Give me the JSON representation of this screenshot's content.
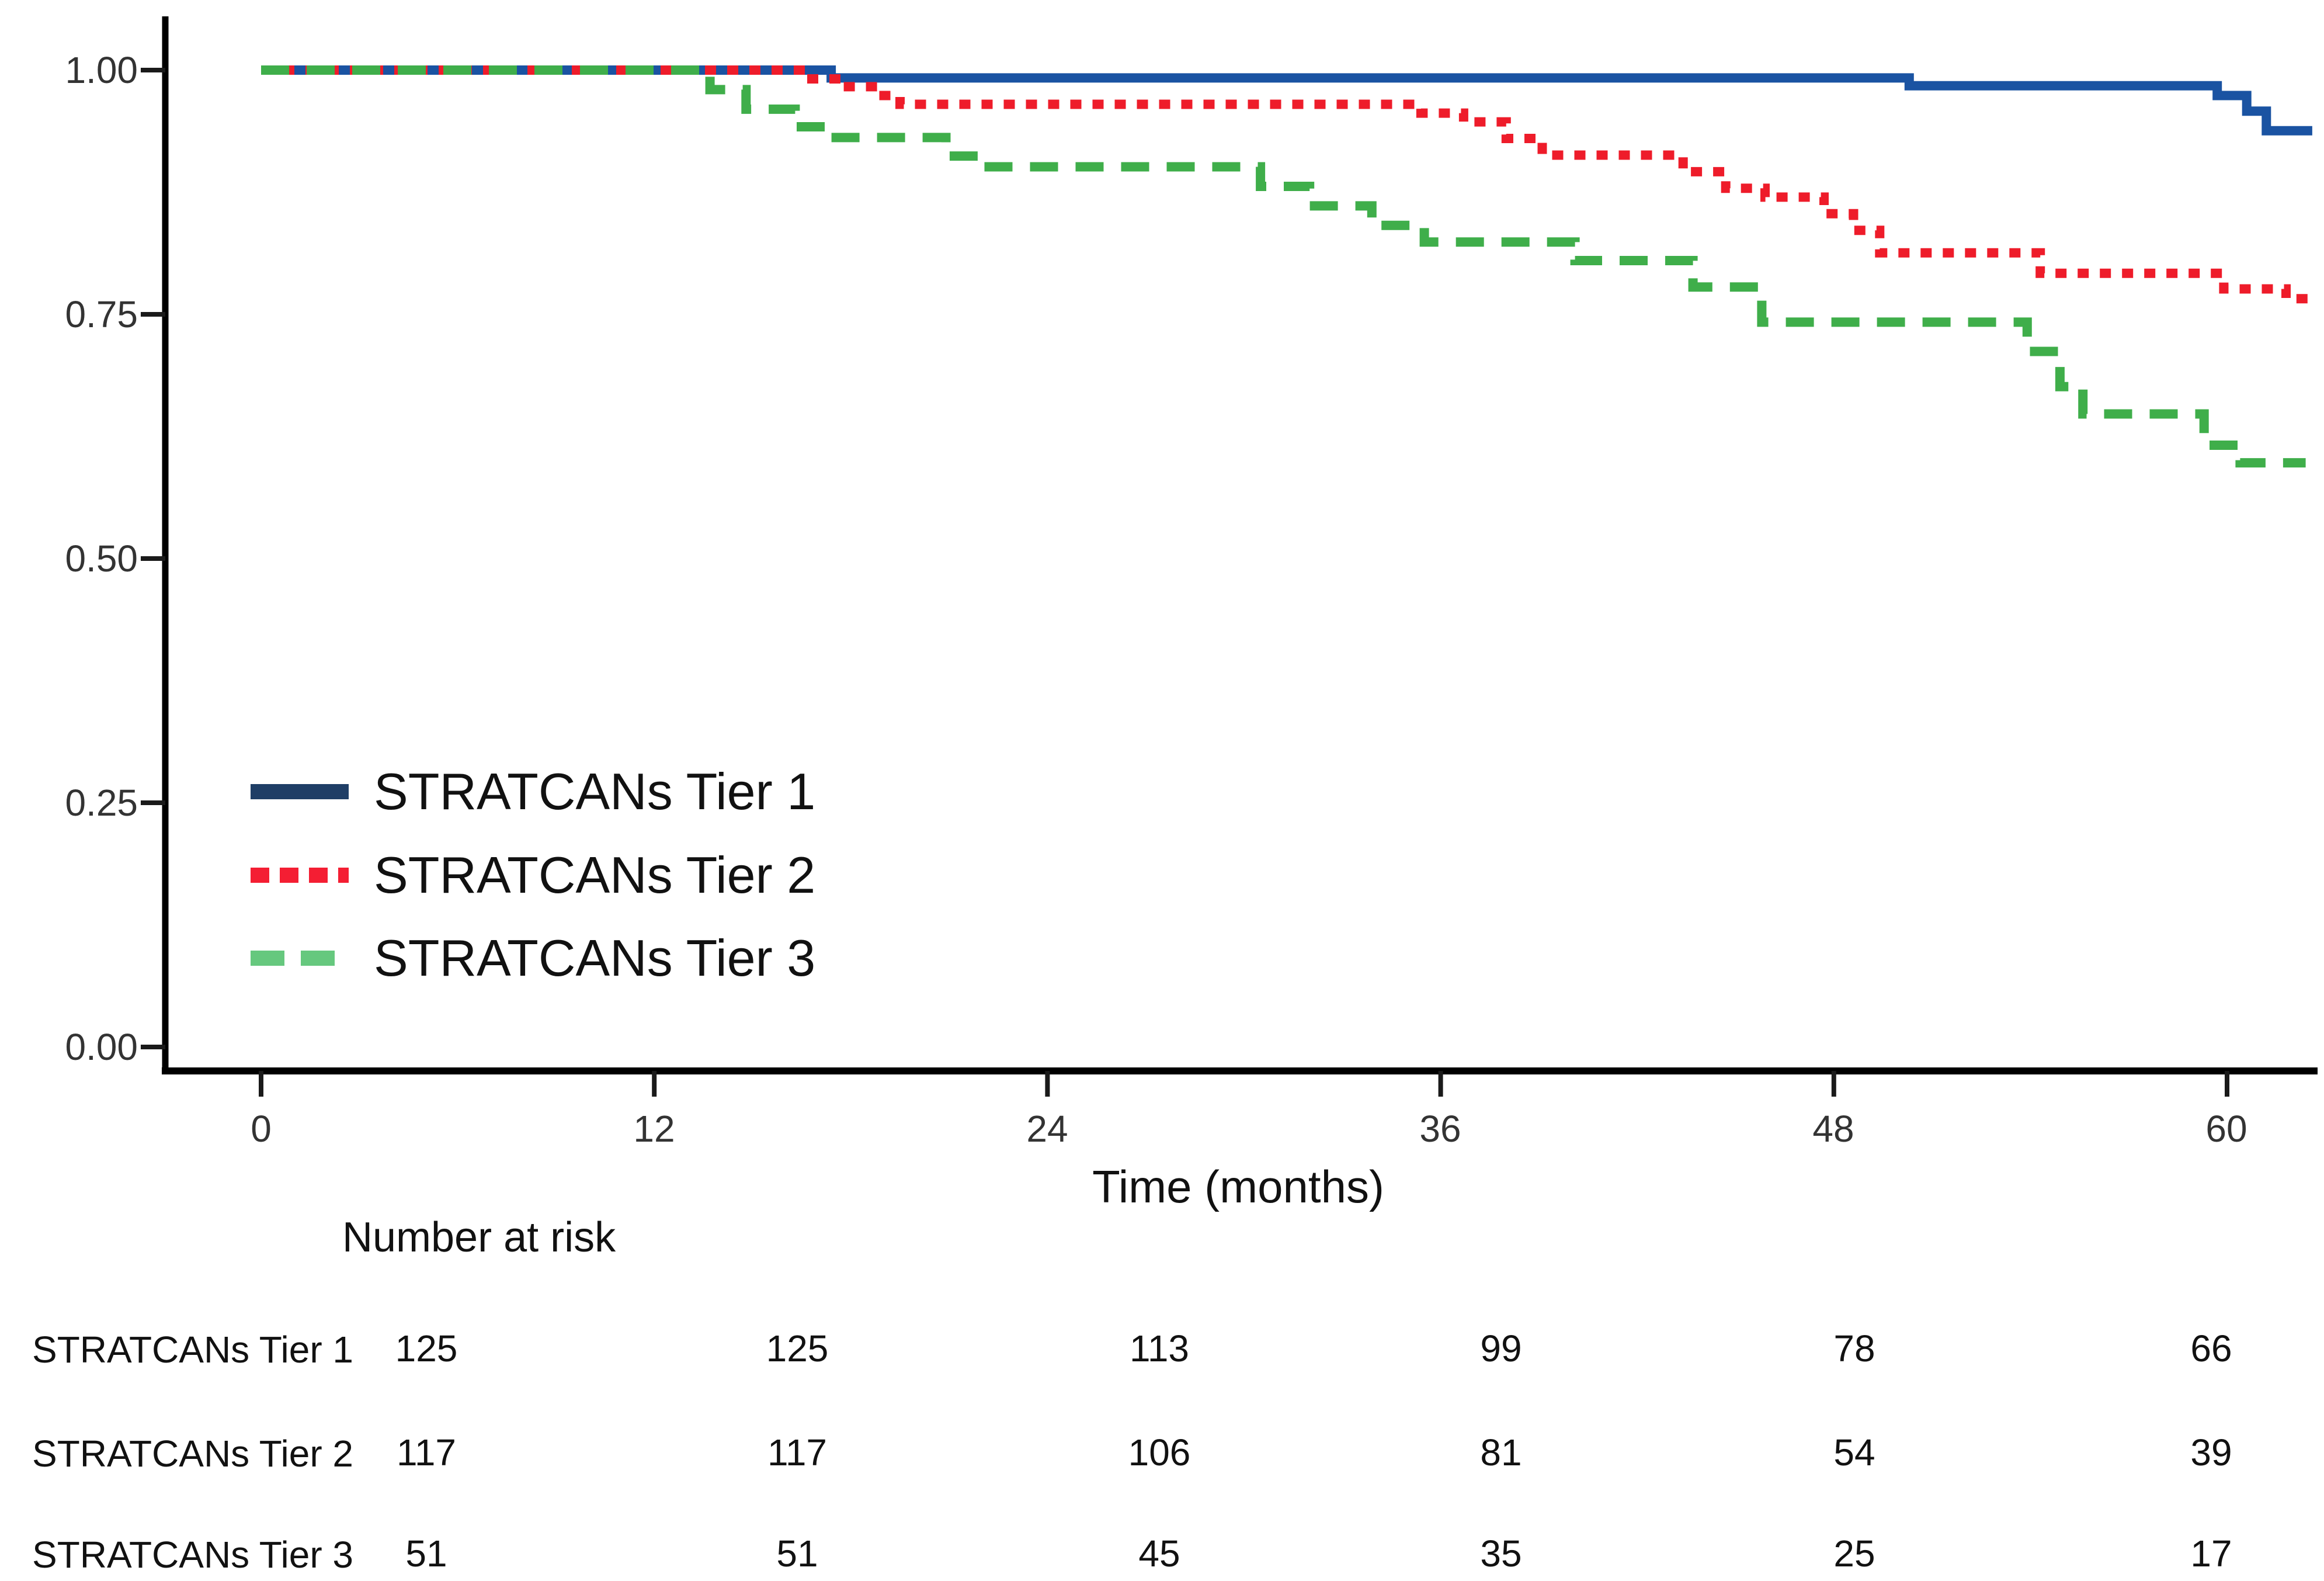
{
  "chart_data": {
    "type": "line",
    "subtype": "kaplan-meier-step",
    "title": "",
    "xlabel": "Time (months)",
    "ylabel": "",
    "grid": false,
    "xlim": [
      0,
      62.6
    ],
    "ylim": [
      0.0,
      1.0
    ],
    "x_ticks": [
      0,
      12,
      24,
      36,
      48,
      60
    ],
    "x_tick_labels": [
      "0",
      "12",
      "24",
      "36",
      "48",
      "60"
    ],
    "y_ticks": [
      1.0,
      0.75,
      0.5,
      0.25,
      0.0
    ],
    "y_tick_labels": [
      "1.00",
      "0.75",
      "0.50",
      "0.25",
      "0.00"
    ],
    "legend_position": "inside-lower-left",
    "series": [
      {
        "name": "STRATCANs Tier 1",
        "color": "#1a53a2",
        "dash": "solid",
        "points": [
          [
            0,
            1.0
          ],
          [
            17.4,
            1.0
          ],
          [
            17.4,
            0.992
          ],
          [
            50.3,
            0.992
          ],
          [
            50.3,
            0.984
          ],
          [
            59.7,
            0.984
          ],
          [
            59.7,
            0.974
          ],
          [
            60.6,
            0.974
          ],
          [
            60.6,
            0.958
          ],
          [
            61.2,
            0.958
          ],
          [
            61.2,
            0.938
          ],
          [
            62.6,
            0.938
          ]
        ]
      },
      {
        "name": "STRATCANs Tier 2",
        "color": "#ee1c2a",
        "dash": "dotted",
        "points": [
          [
            0,
            1.0
          ],
          [
            16.6,
            1.0
          ],
          [
            16.6,
            0.991
          ],
          [
            17.7,
            0.991
          ],
          [
            17.7,
            0.983
          ],
          [
            18.8,
            0.983
          ],
          [
            18.8,
            0.974
          ],
          [
            19.5,
            0.974
          ],
          [
            19.5,
            0.965
          ],
          [
            35.4,
            0.965
          ],
          [
            35.4,
            0.956
          ],
          [
            36.7,
            0.956
          ],
          [
            36.7,
            0.947
          ],
          [
            38.0,
            0.947
          ],
          [
            38.0,
            0.93
          ],
          [
            39.1,
            0.93
          ],
          [
            39.1,
            0.913
          ],
          [
            43.4,
            0.913
          ],
          [
            43.4,
            0.896
          ],
          [
            44.7,
            0.896
          ],
          [
            44.7,
            0.879
          ],
          [
            45.9,
            0.879
          ],
          [
            45.9,
            0.87
          ],
          [
            47.7,
            0.87
          ],
          [
            47.7,
            0.853
          ],
          [
            48.6,
            0.853
          ],
          [
            48.6,
            0.836
          ],
          [
            49.4,
            0.836
          ],
          [
            49.4,
            0.813
          ],
          [
            54.3,
            0.813
          ],
          [
            54.3,
            0.792
          ],
          [
            59.9,
            0.792
          ],
          [
            59.9,
            0.776
          ],
          [
            61.8,
            0.776
          ],
          [
            61.8,
            0.766
          ],
          [
            62.6,
            0.766
          ]
        ]
      },
      {
        "name": "STRATCANs Tier 3",
        "color": "#3fae4a",
        "dash": "dashed",
        "points": [
          [
            0,
            1.0
          ],
          [
            13.7,
            1.0
          ],
          [
            13.7,
            0.98
          ],
          [
            14.8,
            0.98
          ],
          [
            14.8,
            0.96
          ],
          [
            16.3,
            0.96
          ],
          [
            16.3,
            0.942
          ],
          [
            17.4,
            0.942
          ],
          [
            17.4,
            0.931
          ],
          [
            20.9,
            0.931
          ],
          [
            20.9,
            0.912
          ],
          [
            22.0,
            0.912
          ],
          [
            22.0,
            0.901
          ],
          [
            30.5,
            0.901
          ],
          [
            30.5,
            0.881
          ],
          [
            32.0,
            0.881
          ],
          [
            32.0,
            0.861
          ],
          [
            33.9,
            0.861
          ],
          [
            33.9,
            0.841
          ],
          [
            35.5,
            0.841
          ],
          [
            35.5,
            0.824
          ],
          [
            40.1,
            0.824
          ],
          [
            40.1,
            0.805
          ],
          [
            43.7,
            0.805
          ],
          [
            43.7,
            0.778
          ],
          [
            45.8,
            0.778
          ],
          [
            45.8,
            0.742
          ],
          [
            53.9,
            0.742
          ],
          [
            53.9,
            0.712
          ],
          [
            54.9,
            0.712
          ],
          [
            54.9,
            0.676
          ],
          [
            55.6,
            0.676
          ],
          [
            55.6,
            0.648
          ],
          [
            59.3,
            0.648
          ],
          [
            59.3,
            0.616
          ],
          [
            60.4,
            0.616
          ],
          [
            60.4,
            0.598
          ],
          [
            62.4,
            0.598
          ]
        ]
      }
    ]
  },
  "legend": {
    "items": [
      {
        "label": "STRATCANs Tier 1",
        "color": "#1f3e66",
        "dash": "solid"
      },
      {
        "label": "STRATCANs Tier 2",
        "color": "#f41e33",
        "dash": "dotted"
      },
      {
        "label": "STRATCANs Tier 3",
        "color": "#66c87e",
        "dash": "dashed"
      }
    ]
  },
  "risk_table": {
    "heading": "Number at risk",
    "time_points": [
      0,
      12,
      24,
      36,
      48,
      60
    ],
    "rows": [
      {
        "label": "STRATCANs Tier 1",
        "values": [
          "125",
          "125",
          "113",
          "99",
          "78",
          "66"
        ]
      },
      {
        "label": "STRATCANs Tier 2",
        "values": [
          "117",
          "117",
          "106",
          "81",
          "54",
          "39"
        ]
      },
      {
        "label": "STRATCANs Tier 3",
        "values": [
          "51",
          "51",
          "45",
          "35",
          "25",
          "17"
        ]
      }
    ]
  }
}
